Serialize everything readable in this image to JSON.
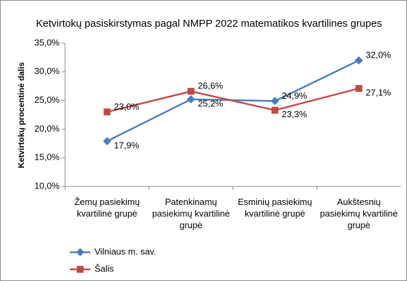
{
  "chart_data": {
    "type": "line",
    "title": "Ketvirtokų pasiskirstymas pagal NMPP 2022 matematikos kvartilines grupes",
    "y_label": "Ketvirtokų procentinė dalis",
    "categories": [
      "Žemų pasiekimų kvartilinė grupė",
      "Patenkinamų pasiekimų kvartilinė grupė",
      "Esminių pasiekimų kvartilinė grupė",
      "Aukštesnių pasiekimų kvartilinė grupė"
    ],
    "series": [
      {
        "name": "Vilniaus m. sav.",
        "color": "#4a7ebb",
        "marker": "diamond",
        "values": [
          17.9,
          25.2,
          24.9,
          32.0
        ],
        "value_labels": [
          "17,9%",
          "25,2%",
          "24,9%",
          "32,0%"
        ]
      },
      {
        "name": "Šalis",
        "color": "#be4b48",
        "marker": "square",
        "values": [
          23.0,
          26.6,
          23.3,
          27.1
        ],
        "value_labels": [
          "23,0%",
          "26,6%",
          "23,3%",
          "27,1%"
        ]
      }
    ],
    "ylim": [
      10,
      35
    ],
    "yticks": [
      {
        "value": 10,
        "label": "10,0%"
      },
      {
        "value": 15,
        "label": "15,0%"
      },
      {
        "value": 20,
        "label": "20,0%"
      },
      {
        "value": 25,
        "label": "25,0%"
      },
      {
        "value": 30,
        "label": "30,0%"
      },
      {
        "value": 35,
        "label": "35,0%"
      }
    ],
    "grid": false,
    "legend": "bottom-left"
  }
}
